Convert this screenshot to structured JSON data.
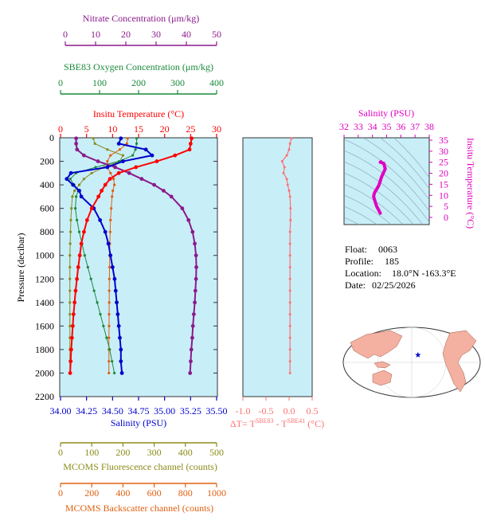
{
  "colors": {
    "nitrate": "#8B1A8B",
    "oxygen": "#1A8A3A",
    "temperature": "#FF0000",
    "salinity": "#0000CC",
    "fluorescence": "#8B8B1A",
    "backscatter": "#E06010",
    "delta": "#FF7070",
    "ts_curve": "#E000C0",
    "panel_bg": "#C8EEF8",
    "map_land": "#F4B0A0",
    "map_ocean": "#FFFFFF"
  },
  "axes": {
    "nitrate": {
      "label": "Nitrate Concentration (μm/kg)",
      "range": [
        0,
        50
      ],
      "ticks": [
        "0",
        "10",
        "20",
        "30",
        "40",
        "50"
      ]
    },
    "oxygen": {
      "label": "SBE83 Oxygen Concentration (μm/kg)",
      "range": [
        0,
        400
      ],
      "ticks": [
        "0",
        "100",
        "200",
        "300",
        "400"
      ]
    },
    "temperature": {
      "label": "Insitu Temperature (°C)",
      "range": [
        0,
        30
      ],
      "ticks": [
        "0",
        "5",
        "10",
        "15",
        "20",
        "25",
        "30"
      ]
    },
    "salinity": {
      "label": "Salinity (PSU)",
      "range": [
        34.0,
        35.5
      ],
      "ticks": [
        "34.00",
        "34.25",
        "34.50",
        "34.75",
        "35.00",
        "35.25",
        "35.50"
      ]
    },
    "pressure": {
      "label": "Pressure (decibar)",
      "range": [
        0,
        2200
      ],
      "ticks": [
        "0",
        "200",
        "400",
        "600",
        "800",
        "1000",
        "1200",
        "1400",
        "1600",
        "1800",
        "2000",
        "2200"
      ]
    },
    "fluorescence": {
      "label": "MCOMS Fluorescence channel (counts)",
      "range": [
        0,
        500
      ],
      "ticks": [
        "0",
        "100",
        "200",
        "300",
        "400",
        "500"
      ]
    },
    "backscatter": {
      "label": "MCOMS Backscatter channel (counts)",
      "range": [
        0,
        1000
      ],
      "ticks": [
        "0",
        "200",
        "400",
        "600",
        "800",
        "1000"
      ]
    },
    "delta": {
      "label_prefix": "ΔT= T",
      "sup1": "SBE83",
      "label_mid": " - T",
      "sup2": "SBE41",
      "label_suffix": " (°C)",
      "range": [
        -1.0,
        0.5
      ],
      "ticks": [
        "-1.0",
        "-0.5",
        "0.0",
        "0.5"
      ]
    },
    "ts_salinity": {
      "label": "Salinity (PSU)",
      "range": [
        32,
        38
      ],
      "ticks": [
        "32",
        "33",
        "34",
        "35",
        "36",
        "37",
        "38"
      ]
    },
    "ts_temperature": {
      "label": "Insitu Temperature (°C)",
      "range": [
        0,
        35
      ],
      "ticks": [
        "0",
        "5",
        "10",
        "15",
        "20",
        "25",
        "30",
        "35"
      ]
    }
  },
  "info": {
    "float_label": "Float:",
    "float": "0063",
    "profile_label": "Profile:",
    "profile": "185",
    "location_label": "Location:",
    "location": "18.0°N  -163.3°E",
    "date_label": "Date:",
    "date": "02/25/2026"
  },
  "chart_data": {
    "type": "line",
    "pressure": [
      5,
      50,
      100,
      150,
      200,
      250,
      300,
      350,
      400,
      450,
      500,
      600,
      700,
      800,
      900,
      1000,
      1100,
      1200,
      1300,
      1400,
      1500,
      1600,
      1700,
      1800,
      1900,
      2000
    ],
    "series": [
      {
        "name": "Insitu Temperature",
        "axis": "temperature",
        "values": [
          25.2,
          25.0,
          24.8,
          22.0,
          18.5,
          14.5,
          11.2,
          9.5,
          8.6,
          7.9,
          7.3,
          6.0,
          5.1,
          4.5,
          4.0,
          3.7,
          3.4,
          3.15,
          2.9,
          2.7,
          2.5,
          2.35,
          2.2,
          2.05,
          1.95,
          1.85
        ]
      },
      {
        "name": "Salinity",
        "axis": "salinity",
        "values": [
          34.58,
          34.56,
          34.82,
          34.88,
          34.6,
          34.45,
          34.1,
          34.06,
          34.12,
          34.18,
          34.2,
          34.32,
          34.38,
          34.43,
          34.46,
          34.48,
          34.5,
          34.52,
          34.53,
          34.54,
          34.55,
          34.56,
          34.57,
          34.58,
          34.58,
          34.59
        ]
      },
      {
        "name": "Nitrate Concentration",
        "axis": "nitrate",
        "values": [
          5.0,
          5.0,
          5.3,
          7.5,
          12.0,
          17.5,
          22.0,
          26.0,
          30.0,
          33.0,
          35.5,
          39.0,
          41.0,
          42.3,
          43.0,
          43.4,
          43.5,
          43.4,
          43.2,
          43.0,
          42.7,
          42.4,
          42.2,
          41.9,
          41.7,
          41.5
        ]
      },
      {
        "name": "SBE83 Oxygen Concentration",
        "axis": "oxygen",
        "values": [
          195,
          195,
          192,
          185,
          150,
          90,
          40,
          25,
          35,
          45,
          40,
          38,
          42,
          48,
          55,
          62,
          70,
          78,
          86,
          94,
          102,
          110,
          118,
          126,
          132,
          138
        ]
      },
      {
        "name": "MCOMS Fluorescence channel",
        "axis": "fluorescence",
        "values": [
          105,
          110,
          150,
          200,
          190,
          140,
          100,
          75,
          60,
          45,
          38,
          35,
          33,
          32,
          31,
          30,
          30,
          30,
          30,
          30,
          30,
          30,
          30,
          30,
          30,
          30
        ]
      },
      {
        "name": "MCOMS Backscatter channel",
        "axis": "backscatter",
        "values": [
          430,
          425,
          380,
          320,
          300,
          300,
          320,
          340,
          345,
          335,
          330,
          325,
          320,
          318,
          316,
          315,
          314,
          313,
          312,
          312,
          311,
          311,
          310,
          310,
          310,
          310
        ]
      },
      {
        "name": "ΔT",
        "axis": "delta",
        "values": [
          0.05,
          0.02,
          0.0,
          -0.05,
          -0.15,
          -0.1,
          -0.12,
          -0.05,
          -0.03,
          0.0,
          0.02,
          0.03,
          0.03,
          0.02,
          0.02,
          0.02,
          0.02,
          0.02,
          0.02,
          0.02,
          0.02,
          0.02,
          0.02,
          0.02,
          0.02,
          0.02
        ]
      }
    ],
    "ts_diagram": {
      "type": "line",
      "salinity": [
        34.6,
        34.55,
        34.8,
        34.9,
        34.65,
        34.45,
        34.15,
        34.08,
        34.15,
        34.22,
        34.3,
        34.4,
        34.48,
        34.55
      ],
      "temperature": [
        25.2,
        25.0,
        24.5,
        22.0,
        18.5,
        14.5,
        11.2,
        9.5,
        8.0,
        6.5,
        5.0,
        3.8,
        2.8,
        1.9
      ]
    },
    "float_location": {
      "lat": 18.0,
      "lon": -163.3
    }
  }
}
